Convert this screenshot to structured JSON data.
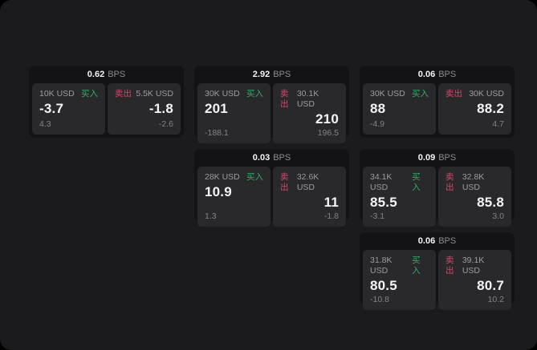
{
  "labels": {
    "buy": "买入",
    "sell": "卖出",
    "bps": "BPS"
  },
  "colors": {
    "page_bg": "#1b1b1d",
    "card_bg": "#131315",
    "panel_bg": "#29292c",
    "buy_green": "#35ad66",
    "sell_red": "#cf4a68",
    "primary_text": "#f5f5f7",
    "muted_text": "#8c8c92"
  },
  "cards": [
    {
      "spread_bps": "0.62",
      "buy": {
        "amount": "10K USD",
        "price": "-3.7",
        "change": "4.3"
      },
      "sell": {
        "amount": "5.5K USD",
        "price": "-1.8",
        "change": "-2.6"
      }
    },
    {
      "spread_bps": "2.92",
      "buy": {
        "amount": "30K USD",
        "price": "201",
        "change": "-188.1"
      },
      "sell": {
        "amount": "30.1K USD",
        "price": "210",
        "change": "196.5"
      }
    },
    {
      "spread_bps": "0.06",
      "buy": {
        "amount": "30K USD",
        "price": "88",
        "change": "-4.9"
      },
      "sell": {
        "amount": "30K USD",
        "price": "88.2",
        "change": "4.7"
      }
    },
    {
      "spread_bps": "0.03",
      "buy": {
        "amount": "28K USD",
        "price": "10.9",
        "change": "1.3"
      },
      "sell": {
        "amount": "32.6K USD",
        "price": "11",
        "change": "-1.8"
      }
    },
    {
      "spread_bps": "0.09",
      "buy": {
        "amount": "34.1K USD",
        "price": "85.5",
        "change": "-3.1"
      },
      "sell": {
        "amount": "32.8K USD",
        "price": "85.8",
        "change": "3.0"
      }
    },
    {
      "spread_bps": "0.06",
      "buy": {
        "amount": "31.8K USD",
        "price": "80.5",
        "change": "-10.8"
      },
      "sell": {
        "amount": "39.1K USD",
        "price": "80.7",
        "change": "10.2"
      }
    }
  ]
}
